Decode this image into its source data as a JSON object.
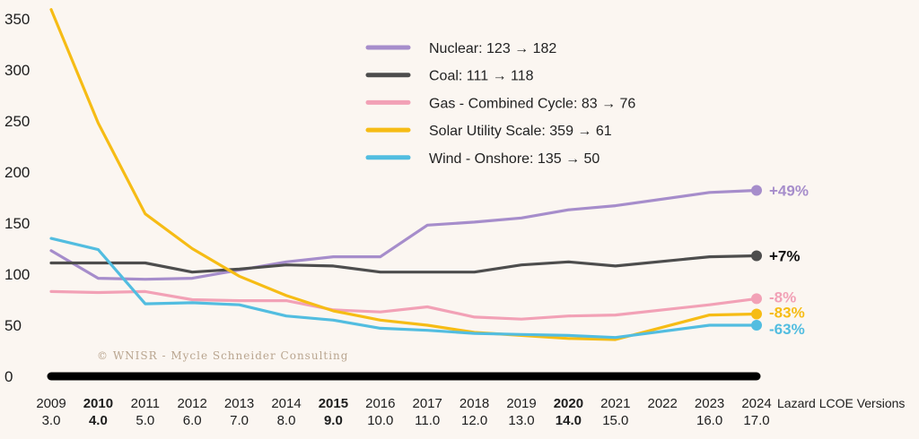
{
  "chart_data": {
    "type": "line",
    "years": [
      "2009",
      "2010",
      "2011",
      "2012",
      "2013",
      "2014",
      "2015",
      "2016",
      "2017",
      "2018",
      "2019",
      "2020",
      "2021",
      "2022",
      "2023",
      "2024"
    ],
    "versions": [
      "3.0",
      "4.0",
      "5.0",
      "6.0",
      "7.0",
      "8.0",
      "9.0",
      "10.0",
      "11.0",
      "12.0",
      "13.0",
      "14.0",
      "15.0",
      "",
      "16.0",
      "17.0"
    ],
    "bold_years": [
      "2010",
      "2015",
      "2020"
    ],
    "x_axis_label": "Lazard LCOE Versions",
    "y_ticks": [
      0,
      50,
      100,
      150,
      200,
      250,
      300,
      350
    ],
    "ylim": [
      0,
      360
    ],
    "series": [
      {
        "name": "Nuclear: 123 → 182",
        "color": "#a68dcb",
        "values": [
          123,
          96,
          95,
          96,
          104,
          112,
          117,
          117,
          148,
          151,
          155,
          163,
          167,
          null,
          180,
          182
        ],
        "end_label": "+49%"
      },
      {
        "name": "Coal: 111 → 118",
        "color": "#4d4d4d",
        "values": [
          111,
          111,
          111,
          102,
          105,
          109,
          108,
          102,
          102,
          102,
          109,
          112,
          108,
          null,
          117,
          118
        ],
        "end_label": "+7%",
        "end_label_color": "#111111"
      },
      {
        "name": "Gas - Combined Cycle: 83 → 76",
        "color": "#f2a1b6",
        "values": [
          83,
          82,
          83,
          75,
          74,
          74,
          65,
          63,
          68,
          58,
          56,
          59,
          60,
          null,
          70,
          76
        ],
        "end_label": "-8%"
      },
      {
        "name": "Solar Utility Scale: 359 → 61",
        "color": "#f6bc15",
        "values": [
          359,
          248,
          159,
          125,
          98,
          79,
          64,
          55,
          50,
          43,
          40,
          37,
          36,
          null,
          60,
          61
        ],
        "end_label": "-83%"
      },
      {
        "name": "Wind - Onshore: 135 → 50",
        "color": "#52bde0",
        "values": [
          135,
          124,
          71,
          72,
          70,
          59,
          55,
          47,
          45,
          42,
          41,
          40,
          38,
          null,
          50,
          50
        ],
        "end_label": "-63%"
      }
    ],
    "zero_line_color": "#000000",
    "legend_position": "top-center",
    "grid": false
  },
  "watermark": "© WNISR - Mycle Schneider Consulting"
}
